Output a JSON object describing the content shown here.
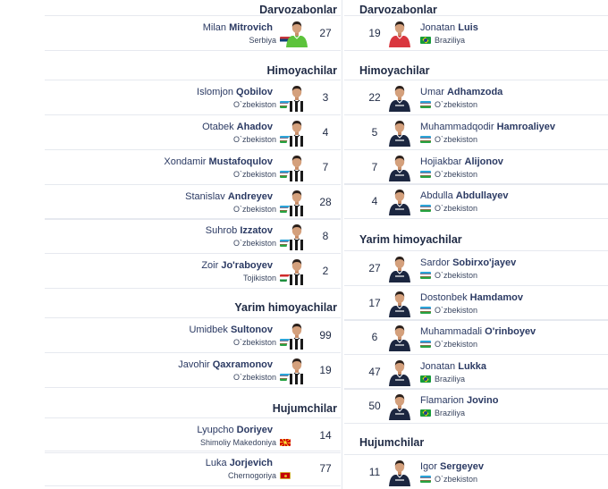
{
  "left": {
    "sections": [
      {
        "title": "Darvozabonlar",
        "players": [
          {
            "first": "Milan",
            "last": "Mitrovich",
            "country": "Serbiya",
            "flag": "flag-rs",
            "number": "27",
            "kit": "goalkeeper-green"
          }
        ]
      },
      {
        "title": "Himoyachilar",
        "players": [
          {
            "first": "Islomjon",
            "last": "Qobilov",
            "country": "O`zbekiston",
            "flag": "flag-uz",
            "number": "3",
            "kit": "striped"
          },
          {
            "first": "Otabek",
            "last": "Ahadov",
            "country": "O`zbekiston",
            "flag": "flag-uz",
            "number": "4",
            "kit": "striped"
          },
          {
            "first": "Xondamir",
            "last": "Mustafoqulov",
            "country": "O`zbekiston",
            "flag": "flag-uz",
            "number": "7",
            "kit": "striped"
          },
          {
            "first": "Stanislav",
            "last": "Andreyev",
            "country": "O`zbekiston",
            "flag": "flag-uz",
            "number": "28",
            "kit": "striped"
          },
          {
            "first": "Suhrob",
            "last": "Izzatov",
            "country": "O`zbekiston",
            "flag": "flag-uz",
            "number": "8",
            "kit": "striped"
          },
          {
            "first": "Zoir",
            "last": "Jo'raboyev",
            "country": "Tojikiston",
            "flag": "flag-tj",
            "number": "2",
            "kit": "striped"
          }
        ]
      },
      {
        "title": "Yarim himoyachilar",
        "players": [
          {
            "first": "Umidbek",
            "last": "Sultonov",
            "country": "O`zbekiston",
            "flag": "flag-uz",
            "number": "99",
            "kit": "striped"
          },
          {
            "first": "Javohir",
            "last": "Qaxramonov",
            "country": "O`zbekiston",
            "flag": "flag-uz",
            "number": "19",
            "kit": "striped"
          }
        ]
      },
      {
        "title": "Hujumchilar",
        "players": [
          {
            "first": "Lyupcho",
            "last": "Doriyev",
            "country": "Shimoliy Makedoniya",
            "flag": "flag-mk",
            "number": "14",
            "kit": "none"
          },
          {
            "first": "Luka",
            "last": "Jorjevich",
            "country": "Chernogoriya",
            "flag": "flag-me",
            "number": "77",
            "kit": "none"
          }
        ]
      }
    ]
  },
  "right": {
    "sections": [
      {
        "title": "Darvozabonlar",
        "players": [
          {
            "first": "Jonatan",
            "last": "Luis",
            "country": "Braziliya",
            "flag": "flag-br",
            "number": "19",
            "kit": "goalkeeper-red"
          }
        ]
      },
      {
        "title": "Himoyachilar",
        "players": [
          {
            "first": "Umar",
            "last": "Adhamzoda",
            "country": "O`zbekiston",
            "flag": "flag-uz",
            "number": "22",
            "kit": "navy"
          },
          {
            "first": "Muhammadqodir",
            "last": "Hamroaliyev",
            "country": "O`zbekiston",
            "flag": "flag-uz",
            "number": "5",
            "kit": "navy"
          },
          {
            "first": "Hojiakbar",
            "last": "Alijonov",
            "country": "O`zbekiston",
            "flag": "flag-uz",
            "number": "7",
            "kit": "navy"
          },
          {
            "first": "Abdulla",
            "last": "Abdullayev",
            "country": "O`zbekiston",
            "flag": "flag-uz",
            "number": "4",
            "kit": "navy"
          }
        ]
      },
      {
        "title": "Yarim himoyachilar",
        "players": [
          {
            "first": "Sardor",
            "last": "Sobirxo'jayev",
            "country": "O`zbekiston",
            "flag": "flag-uz",
            "number": "27",
            "kit": "navy"
          },
          {
            "first": "Dostonbek",
            "last": "Hamdamov",
            "country": "O`zbekiston",
            "flag": "flag-uz",
            "number": "17",
            "kit": "navy"
          },
          {
            "first": "Muhammadali",
            "last": "O'rinboyev",
            "country": "O`zbekiston",
            "flag": "flag-uz",
            "number": "6",
            "kit": "navy"
          },
          {
            "first": "Jonatan",
            "last": "Lukka",
            "country": "Braziliya",
            "flag": "flag-br",
            "number": "47",
            "kit": "navy"
          },
          {
            "first": "Flamarion",
            "last": "Jovino",
            "country": "Braziliya",
            "flag": "flag-br",
            "number": "50",
            "kit": "navy"
          }
        ]
      },
      {
        "title": "Hujumchilar",
        "players": [
          {
            "first": "Igor",
            "last": "Sergeyev",
            "country": "O`zbekiston",
            "flag": "flag-uz",
            "number": "11",
            "kit": "navy"
          }
        ]
      }
    ]
  },
  "colors": {
    "text": "#1f2a44",
    "name": "#2b3a63",
    "divider": "#e6e9ef"
  }
}
